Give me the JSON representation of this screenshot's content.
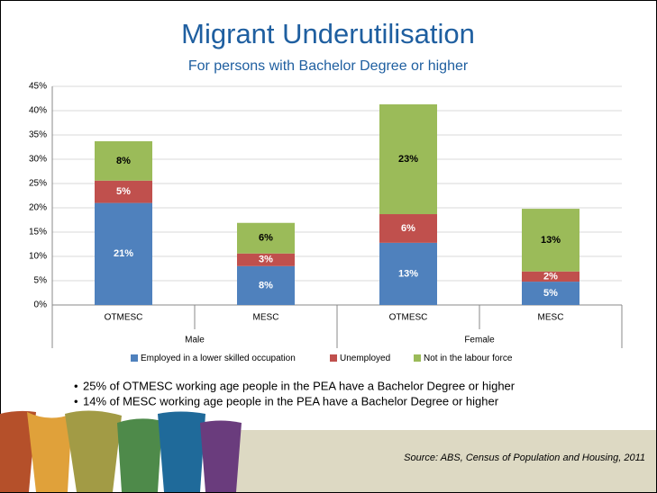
{
  "chart_data": {
    "type": "stacked_bar",
    "title": "Migrant Underutilisation",
    "subtitle": "For persons with Bachelor Degree or higher",
    "categories": [
      "OTMESC",
      "MESC",
      "OTMESC",
      "MESC"
    ],
    "groups": [
      "Male",
      "Female"
    ],
    "series": [
      {
        "name": "Employed in a lower skilled occupation",
        "color": "#4f81bd",
        "values": [
          21,
          8,
          12.8,
          4.8
        ],
        "value_labels": [
          "21%",
          "8%",
          "13%",
          "5%"
        ]
      },
      {
        "name": "Unemployed",
        "color": "#c0504d",
        "values": [
          4.6,
          2.6,
          5.9,
          2.1
        ],
        "value_labels": [
          "5%",
          "3%",
          "6%",
          "2%"
        ]
      },
      {
        "name": "Not in the labour force",
        "color": "#9bbb59",
        "values": [
          8.1,
          6.3,
          22.6,
          12.9
        ],
        "value_labels": [
          "8%",
          "6%",
          "23%",
          "13%"
        ]
      }
    ],
    "ylim": [
      0,
      45
    ],
    "yticks": [
      {
        "value": 0,
        "label": "0%"
      },
      {
        "value": 5,
        "label": "5%"
      },
      {
        "value": 10,
        "label": "10%"
      },
      {
        "value": 15,
        "label": "15%"
      },
      {
        "value": 20,
        "label": "20%"
      },
      {
        "value": 25,
        "label": "25%"
      },
      {
        "value": 30,
        "label": "30%"
      },
      {
        "value": 35,
        "label": "35%"
      },
      {
        "value": 40,
        "label": "40%"
      },
      {
        "value": 45,
        "label": "45%"
      }
    ],
    "grid": true,
    "legend": "bottom"
  },
  "bullets": [
    "25% of OTMESC working age people in the PEA have a Bachelor Degree or higher",
    "14% of MESC working age people in the PEA have a Bachelor Degree or higher"
  ],
  "source": "Source: ABS, Census of Population and Housing, 2011"
}
